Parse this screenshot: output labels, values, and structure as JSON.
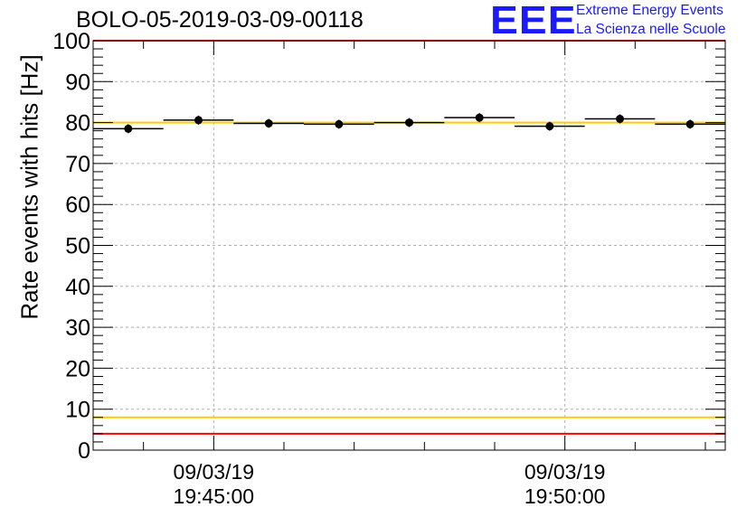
{
  "title": "BOLO-05-2019-03-09-00118",
  "logo": {
    "mark": "EEE",
    "line1": "Extreme Energy Events",
    "line2": "La Scienza nelle Scuole",
    "color": "#1a1aff"
  },
  "chart_data": {
    "type": "scatter",
    "title": "BOLO-05-2019-03-09-00118",
    "ylabel": "Rate events with hits [Hz]",
    "xlabel": "",
    "ylim": [
      0,
      100
    ],
    "yticks": [
      0,
      10,
      20,
      30,
      40,
      50,
      60,
      70,
      80,
      90,
      100
    ],
    "xlim": [
      "19:43:17",
      "19:52:17"
    ],
    "xticks": [
      {
        "t": "19:45:00",
        "label1": "09/03/19",
        "label2": "19:45:00"
      },
      {
        "t": "19:50:00",
        "label1": "09/03/19",
        "label2": "19:50:00"
      }
    ],
    "grid": true,
    "series": [
      {
        "marker": "circle",
        "color": "#000000",
        "points": [
          {
            "t_start": "19:43:17",
            "t_end": "19:44:17",
            "y": 78.5
          },
          {
            "t_start": "19:44:17",
            "t_end": "19:45:17",
            "y": 80.6
          },
          {
            "t_start": "19:45:17",
            "t_end": "19:46:17",
            "y": 79.8
          },
          {
            "t_start": "19:46:17",
            "t_end": "19:47:17",
            "y": 79.6
          },
          {
            "t_start": "19:47:17",
            "t_end": "19:48:17",
            "y": 80.0
          },
          {
            "t_start": "19:48:17",
            "t_end": "19:49:17",
            "y": 81.2
          },
          {
            "t_start": "19:49:17",
            "t_end": "19:50:17",
            "y": 79.1
          },
          {
            "t_start": "19:50:17",
            "t_end": "19:51:17",
            "y": 80.9
          },
          {
            "t_start": "19:51:17",
            "t_end": "19:52:17",
            "y": 79.6
          }
        ]
      }
    ],
    "reference_lines": [
      {
        "y": 100,
        "color": "#ff0000"
      },
      {
        "y": 4,
        "color": "#ff0000"
      },
      {
        "y": 80,
        "color": "#ffcc00"
      },
      {
        "y": 8,
        "color": "#ffcc00"
      }
    ]
  }
}
